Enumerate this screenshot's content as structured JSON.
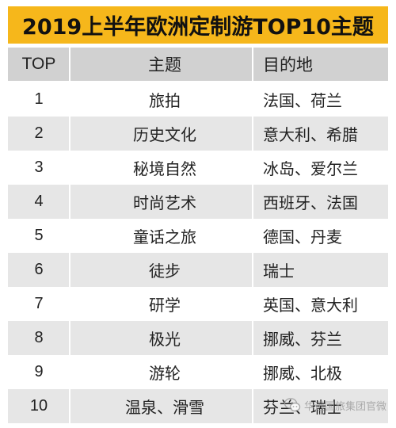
{
  "title": "2019上半年欧洲定制游TOP10主题",
  "columns": {
    "rank": "TOP",
    "theme": "主题",
    "destination": "目的地"
  },
  "rows": [
    {
      "rank": "1",
      "theme": "旅拍",
      "destination": "法国、荷兰"
    },
    {
      "rank": "2",
      "theme": "历史文化",
      "destination": "意大利、希腊"
    },
    {
      "rank": "3",
      "theme": "秘境自然",
      "destination": "冰岛、爱尔兰"
    },
    {
      "rank": "4",
      "theme": "时尚艺术",
      "destination": "西班牙、法国"
    },
    {
      "rank": "5",
      "theme": "童话之旅",
      "destination": "德国、丹麦"
    },
    {
      "rank": "6",
      "theme": "徒步",
      "destination": "瑞士"
    },
    {
      "rank": "7",
      "theme": "研学",
      "destination": "英国、意大利"
    },
    {
      "rank": "8",
      "theme": "极光",
      "destination": "挪威、芬兰"
    },
    {
      "rank": "9",
      "theme": "游轮",
      "destination": "挪威、北极"
    },
    {
      "rank": "10",
      "theme": "温泉、滑雪",
      "destination": "芬兰、瑞士"
    }
  ],
  "watermark": {
    "text": "华远国旅集团官微",
    "icon": "wechat-icon"
  },
  "colors": {
    "banner": "#f6b71b",
    "header_row": "#d1d1d1",
    "shaded_row": "#e6e6e6"
  }
}
